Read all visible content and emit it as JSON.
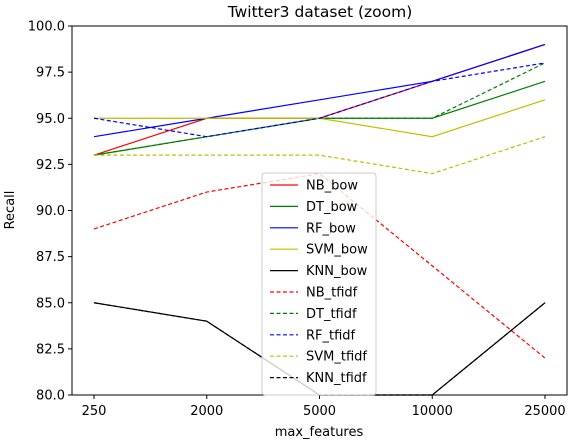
{
  "chart_data": {
    "type": "line",
    "title": "Twitter3 dataset (zoom)",
    "xlabel": "max_features",
    "ylabel": "Recall",
    "categories": [
      "250",
      "2000",
      "5000",
      "10000",
      "25000"
    ],
    "ylim": [
      80.0,
      100.0
    ],
    "yticks": [
      "80.0",
      "82.5",
      "85.0",
      "87.5",
      "90.0",
      "92.5",
      "95.0",
      "97.5",
      "100.0"
    ],
    "legend_position": "lower center",
    "series": [
      {
        "name": "NB_bow",
        "color": "#ff0000",
        "dash": "solid",
        "values": [
          93,
          95,
          95,
          97,
          99
        ]
      },
      {
        "name": "DT_bow",
        "color": "#008000",
        "dash": "solid",
        "values": [
          93,
          94,
          95,
          95,
          97
        ]
      },
      {
        "name": "RF_bow",
        "color": "#0000ff",
        "dash": "solid",
        "values": [
          94,
          95,
          96,
          97,
          99
        ]
      },
      {
        "name": "SVM_bow",
        "color": "#bfbf00",
        "dash": "solid",
        "values": [
          95,
          95,
          95,
          94,
          96
        ]
      },
      {
        "name": "KNN_bow",
        "color": "#000000",
        "dash": "solid",
        "values": [
          85,
          84,
          80,
          80,
          85
        ]
      },
      {
        "name": "NB_tfidf",
        "color": "#ff0000",
        "dash": "dashed",
        "values": [
          89,
          91,
          92,
          87,
          82
        ]
      },
      {
        "name": "DT_tfidf",
        "color": "#008000",
        "dash": "dashed",
        "values": [
          93,
          94,
          95,
          95,
          98
        ]
      },
      {
        "name": "RF_tfidf",
        "color": "#0000ff",
        "dash": "dashed",
        "values": [
          95,
          94,
          95,
          97,
          98
        ]
      },
      {
        "name": "SVM_tfidf",
        "color": "#bfbf00",
        "dash": "dashed",
        "values": [
          93,
          93,
          93,
          92,
          94
        ]
      },
      {
        "name": "KNN_tfidf",
        "color": "#000000",
        "dash": "dashed",
        "values": [
          85,
          84,
          80,
          80,
          85
        ]
      }
    ]
  }
}
